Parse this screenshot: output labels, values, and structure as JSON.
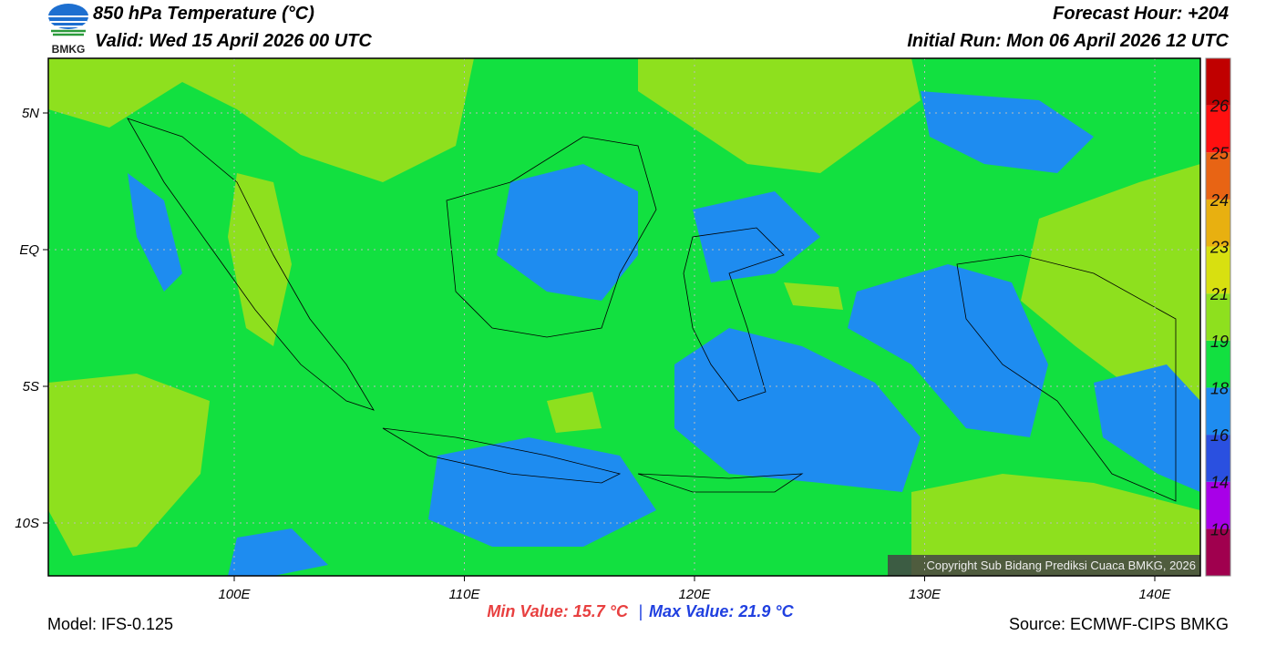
{
  "header": {
    "logo": "BMKG",
    "title": "850 hPa Temperature (°C)",
    "valid": "Valid: Wed 15 April 2026 00 UTC",
    "forecast": "Forecast Hour: +204",
    "initial": "Initial Run: Mon 06 April 2026 12 UTC"
  },
  "map": {
    "lat_labels": [
      "5N",
      "EQ",
      "5S",
      "10S"
    ],
    "lon_labels": [
      "100E",
      "110E",
      "120E",
      "130E",
      "140E"
    ],
    "copyright": "Copyright Sub Bidang Prediksi Cuaca BMKG, 2026"
  },
  "colorbar": {
    "labels": [
      10,
      14,
      16,
      18,
      19,
      21,
      23,
      24,
      25,
      26
    ],
    "colors": [
      "#a0004e",
      "#a800e8",
      "#2a50e0",
      "#1e8cf0",
      "#12e040",
      "#8ee01e",
      "#d8e010",
      "#e8b010",
      "#e86414",
      "#ff1010",
      "#c00000"
    ]
  },
  "footer": {
    "model": "Model: IFS-0.125",
    "min": "Min Value: 15.7 °C",
    "separator": "|",
    "max": "Max Value: 21.9 °C",
    "source": "Source: ECMWF-CIPS BMKG"
  }
}
